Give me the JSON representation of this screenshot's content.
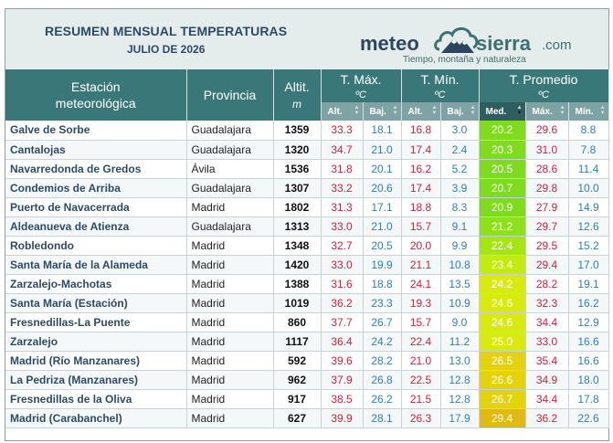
{
  "header": {
    "title": "RESUMEN MENSUAL TEMPERATURAS",
    "subtitle": "JULIO DE 2026"
  },
  "logo": {
    "brand_part1": "meteo",
    "brand_part2": "sierra",
    "brand_suffix": ".com",
    "tagline": "Tiempo, montaña y naturaleza",
    "icon": "mountain-cloud-icon"
  },
  "columns": {
    "station_line1": "Estación",
    "station_line2": "meteorológica",
    "province": "Provincia",
    "altitude": "Altit.",
    "altitude_unit": "m",
    "tmax": "T. Máx.",
    "tmin": "T. Mín.",
    "tavg": "T. Promedio",
    "unit": "ºC",
    "tmax_high": "Alt.",
    "tmax_low": "Baj.",
    "tmin_high": "Alt.",
    "tmin_low": "Baj.",
    "avg_med": "Med.",
    "avg_max": "Máx.",
    "avg_min": "Mín."
  },
  "sort": {
    "column": "avg_med",
    "direction": "descending"
  },
  "colors": {
    "header_bg": "#3a7778",
    "subheader_bg": "#7fa3a5",
    "max_text": "#d0203a",
    "min_text": "#2b7fc0",
    "station_text": "#2e4b66",
    "med_scale": [
      "#7fdb1d",
      "#8ee01a",
      "#a6e514",
      "#c2eb11",
      "#d9ea0e",
      "#e4d20d",
      "#e2b812"
    ]
  },
  "rows": [
    {
      "station": "Galve de Sorbe",
      "province": "Guadalajara",
      "alt": "1359",
      "max_high": "33.3",
      "max_low": "18.1",
      "min_high": "16.8",
      "min_low": "3.0",
      "med": "20.2",
      "avg_max": "29.6",
      "avg_min": "8.8",
      "level": 0
    },
    {
      "station": "Cantalojas",
      "province": "Guadalajara",
      "alt": "1320",
      "max_high": "34.7",
      "max_low": "21.0",
      "min_high": "17.4",
      "min_low": "2.4",
      "med": "20.3",
      "avg_max": "31.0",
      "avg_min": "7.8",
      "level": 0
    },
    {
      "station": "Navarredonda de Gredos",
      "province": "Ávila",
      "alt": "1536",
      "max_high": "31.8",
      "max_low": "20.1",
      "min_high": "16.2",
      "min_low": "5.2",
      "med": "20.5",
      "avg_max": "28.6",
      "avg_min": "11.4",
      "level": 0
    },
    {
      "station": "Condemios de Arriba",
      "province": "Guadalajara",
      "alt": "1307",
      "max_high": "33.2",
      "max_low": "20.6",
      "min_high": "17.4",
      "min_low": "3.9",
      "med": "20.7",
      "avg_max": "29.8",
      "avg_min": "10.0",
      "level": 0
    },
    {
      "station": "Puerto de Navacerrada",
      "province": "Madrid",
      "alt": "1802",
      "max_high": "31.3",
      "max_low": "17.1",
      "min_high": "18.8",
      "min_low": "8.3",
      "med": "20.9",
      "avg_max": "27.9",
      "avg_min": "14.9",
      "level": 0
    },
    {
      "station": "Aldeanueva de Atienza",
      "province": "Guadalajara",
      "alt": "1313",
      "max_high": "33.0",
      "max_low": "21.0",
      "min_high": "15.7",
      "min_low": "9.1",
      "med": "21.2",
      "avg_max": "29.7",
      "avg_min": "12.6",
      "level": 1
    },
    {
      "station": "Robledondo",
      "province": "Madrid",
      "alt": "1348",
      "max_high": "32.7",
      "max_low": "20.5",
      "min_high": "20.0",
      "min_low": "9.9",
      "med": "22.4",
      "avg_max": "29.5",
      "avg_min": "15.2",
      "level": 2
    },
    {
      "station": "Santa María de la Alameda",
      "province": "Madrid",
      "alt": "1420",
      "max_high": "33.0",
      "max_low": "19.9",
      "min_high": "21.1",
      "min_low": "10.8",
      "med": "23.4",
      "avg_max": "29.4",
      "avg_min": "17.0",
      "level": 3
    },
    {
      "station": "Zarzalejo-Machotas",
      "province": "Madrid",
      "alt": "1388",
      "max_high": "31.6",
      "max_low": "18.8",
      "min_high": "24.1",
      "min_low": "13.5",
      "med": "24.2",
      "avg_max": "28.2",
      "avg_min": "19.1",
      "level": 4
    },
    {
      "station": "Santa María (Estación)",
      "province": "Madrid",
      "alt": "1019",
      "max_high": "36.2",
      "max_low": "23.3",
      "min_high": "19.3",
      "min_low": "10.9",
      "med": "24.6",
      "avg_max": "32.3",
      "avg_min": "16.2",
      "level": 4
    },
    {
      "station": "Fresnedillas-La Puente",
      "province": "Madrid",
      "alt": "860",
      "max_high": "37.7",
      "max_low": "26.7",
      "min_high": "15.7",
      "min_low": "9.0",
      "med": "24.6",
      "avg_max": "34.4",
      "avg_min": "12.9",
      "level": 4
    },
    {
      "station": "Zarzalejo",
      "province": "Madrid",
      "alt": "1117",
      "max_high": "36.4",
      "max_low": "24.2",
      "min_high": "22.4",
      "min_low": "11.2",
      "med": "25.0",
      "avg_max": "33.0",
      "avg_min": "16.6",
      "level": 4
    },
    {
      "station": "Madrid (Río Manzanares)",
      "province": "Madrid",
      "alt": "592",
      "max_high": "39.6",
      "max_low": "28.2",
      "min_high": "21.0",
      "min_low": "13.0",
      "med": "26.5",
      "avg_max": "35.4",
      "avg_min": "16.6",
      "level": 5
    },
    {
      "station": "La Pedriza (Manzanares)",
      "province": "Madrid",
      "alt": "962",
      "max_high": "37.9",
      "max_low": "26.8",
      "min_high": "22.5",
      "min_low": "12.8",
      "med": "26.6",
      "avg_max": "34.9",
      "avg_min": "18.0",
      "level": 5
    },
    {
      "station": "Fresnedillas de la Oliva",
      "province": "Madrid",
      "alt": "917",
      "max_high": "38.5",
      "max_low": "26.2",
      "min_high": "21.5",
      "min_low": "12.8",
      "med": "26.7",
      "avg_max": "34.4",
      "avg_min": "17.8",
      "level": 5
    },
    {
      "station": "Madrid (Carabanchel)",
      "province": "Madrid",
      "alt": "627",
      "max_high": "39.9",
      "max_low": "28.1",
      "min_high": "26.3",
      "min_low": "17.9",
      "med": "29.4",
      "avg_max": "36.2",
      "avg_min": "22.6",
      "level": 6
    }
  ]
}
